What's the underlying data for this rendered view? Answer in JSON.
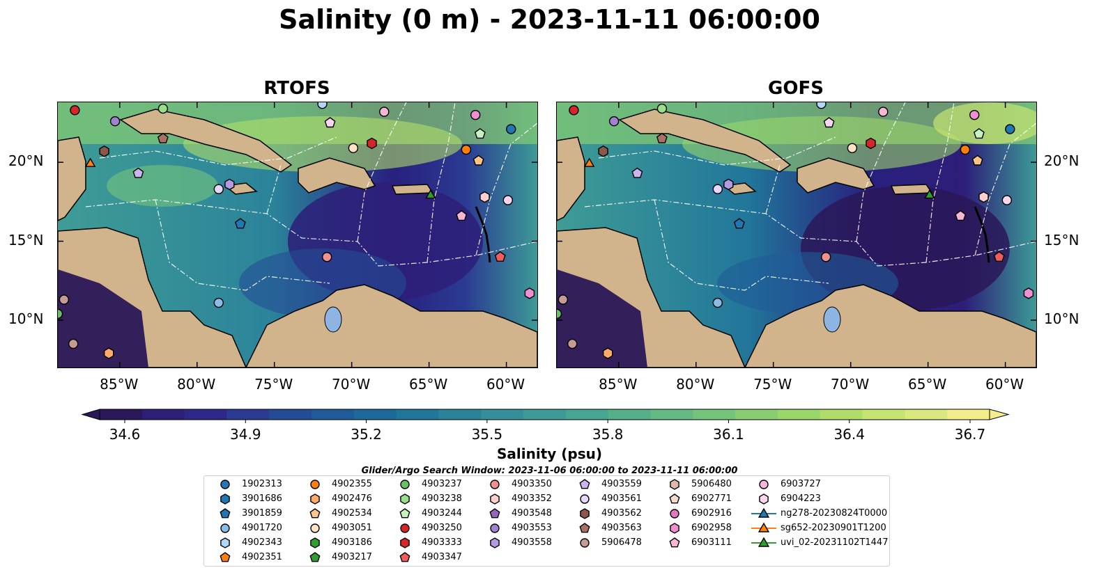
{
  "title": "Salinity (0 m) - 2023-11-11 06:00:00",
  "panels": [
    {
      "title": "RTOFS"
    },
    {
      "title": "GOFS"
    }
  ],
  "map": {
    "lon_range": [
      -89,
      -58
    ],
    "lat_range": [
      7,
      23.8
    ],
    "lon_ticks": [
      {
        "value": -85,
        "label": "85°W"
      },
      {
        "value": -80,
        "label": "80°W"
      },
      {
        "value": -75,
        "label": "75°W"
      },
      {
        "value": -70,
        "label": "70°W"
      },
      {
        "value": -65,
        "label": "65°W"
      },
      {
        "value": -60,
        "label": "60°W"
      }
    ],
    "lat_ticks": [
      {
        "value": 20,
        "label": "20°N"
      },
      {
        "value": 15,
        "label": "15°N"
      },
      {
        "value": 10,
        "label": "10°N"
      }
    ],
    "colors": {
      "land": "#d2b48c",
      "water_body": "#8db4e2",
      "coast": "#000000",
      "eez_lines": "#ffffff"
    }
  },
  "colorbar": {
    "label": "Salinity (psu)",
    "min": 34.6,
    "max": 36.7,
    "ticks": [
      "34.6",
      "34.9",
      "35.2",
      "35.5",
      "35.8",
      "36.1",
      "36.4",
      "36.7"
    ],
    "colors": [
      "#2a1858",
      "#2d1e78",
      "#2e2888",
      "#2b3b92",
      "#244c96",
      "#1f5b98",
      "#1d6999",
      "#21769a",
      "#2b839a",
      "#348f9a",
      "#3d9a97",
      "#48a592",
      "#55b08a",
      "#65ba83",
      "#75c47b",
      "#88cd70",
      "#9bd66a",
      "#b0dd69",
      "#c6e471",
      "#dbe880",
      "#f3ed8c"
    ]
  },
  "search_window": "Glider/Argo Search Window: 2023-11-06 06:00:00 to 2023-11-11 06:00:00",
  "legend": {
    "columns": [
      [
        {
          "label": "1902313",
          "color": "#1f77b4",
          "marker": "circle"
        },
        {
          "label": "3901686",
          "color": "#1f77b4",
          "marker": "hexagon"
        },
        {
          "label": "3901859",
          "color": "#1f77b4",
          "marker": "pentagon"
        },
        {
          "label": "4901720",
          "color": "#88bde6",
          "marker": "circle"
        },
        {
          "label": "4902343",
          "color": "#aed8f5",
          "marker": "hexagon"
        },
        {
          "label": "4902351",
          "color": "#ff7f0e",
          "marker": "pentagon"
        }
      ],
      [
        {
          "label": "4902355",
          "color": "#ff7f0e",
          "marker": "circle"
        },
        {
          "label": "4902476",
          "color": "#ffaa6a",
          "marker": "hexagon"
        },
        {
          "label": "4902534",
          "color": "#ffc48a",
          "marker": "pentagon"
        },
        {
          "label": "4903051",
          "color": "#ffe2c4",
          "marker": "circle"
        },
        {
          "label": "4903186",
          "color": "#2ca02c",
          "marker": "hexagon"
        },
        {
          "label": "4903217",
          "color": "#2ca02c",
          "marker": "pentagon"
        }
      ],
      [
        {
          "label": "4903237",
          "color": "#67c267",
          "marker": "circle"
        },
        {
          "label": "4903238",
          "color": "#98df8a",
          "marker": "hexagon"
        },
        {
          "label": "4903244",
          "color": "#c6f2c0",
          "marker": "pentagon"
        },
        {
          "label": "4903250",
          "color": "#d62728",
          "marker": "circle"
        },
        {
          "label": "4903333",
          "color": "#d62728",
          "marker": "hexagon"
        },
        {
          "label": "4903347",
          "color": "#f05b5c",
          "marker": "pentagon"
        }
      ],
      [
        {
          "label": "4903350",
          "color": "#f0908f",
          "marker": "circle"
        },
        {
          "label": "4903352",
          "color": "#ffcfcf",
          "marker": "hexagon"
        },
        {
          "label": "4903548",
          "color": "#9467bd",
          "marker": "pentagon"
        },
        {
          "label": "4903553",
          "color": "#a281d1",
          "marker": "circle"
        },
        {
          "label": "4903558",
          "color": "#b49be0",
          "marker": "hexagon"
        }
      ],
      [
        {
          "label": "4903559",
          "color": "#cbb5ee",
          "marker": "pentagon"
        },
        {
          "label": "4903561",
          "color": "#e6d7fb",
          "marker": "circle"
        },
        {
          "label": "4903562",
          "color": "#8c564b",
          "marker": "hexagon"
        },
        {
          "label": "4903563",
          "color": "#a87165",
          "marker": "pentagon"
        },
        {
          "label": "5906478",
          "color": "#c49c94",
          "marker": "circle"
        }
      ],
      [
        {
          "label": "5906480",
          "color": "#e0b8aa",
          "marker": "hexagon"
        },
        {
          "label": "6902771",
          "color": "#f5d9cc",
          "marker": "pentagon"
        },
        {
          "label": "6902916",
          "color": "#e377c2",
          "marker": "circle"
        },
        {
          "label": "6902958",
          "color": "#f08fd1",
          "marker": "hexagon"
        },
        {
          "label": "6903111",
          "color": "#f7b6d2",
          "marker": "pentagon"
        }
      ],
      [
        {
          "label": "6903727",
          "color": "#f9b4e0",
          "marker": "circle"
        },
        {
          "label": "6904223",
          "color": "#fcd5ee",
          "marker": "hexagon"
        },
        {
          "label": "ng278-20230824T0000",
          "color": "#1f77b4",
          "marker": "triangle-line"
        },
        {
          "label": "sg652-20230901T1200",
          "color": "#ff7f0e",
          "marker": "triangle-line"
        },
        {
          "label": "uvi_02-20231102T1447",
          "color": "#2ca02c",
          "marker": "triangle-line"
        }
      ]
    ]
  },
  "observations": [
    {
      "lon": -87.9,
      "lat": 23.3,
      "marker": "circle",
      "color": "#d62728"
    },
    {
      "lon": -85.3,
      "lat": 22.6,
      "marker": "circle",
      "color": "#a281d1"
    },
    {
      "lon": -82.2,
      "lat": 23.4,
      "marker": "circle",
      "color": "#98df8a"
    },
    {
      "lon": -82.2,
      "lat": 21.5,
      "marker": "pentagon",
      "color": "#a87165"
    },
    {
      "lon": -86.0,
      "lat": 20.7,
      "marker": "hexagon",
      "color": "#8c564b"
    },
    {
      "lon": -86.9,
      "lat": 19.9,
      "marker": "triangle",
      "color": "#ff7f0e"
    },
    {
      "lon": -83.8,
      "lat": 19.3,
      "marker": "pentagon",
      "color": "#cbb5ee"
    },
    {
      "lon": -71.9,
      "lat": 23.7,
      "marker": "circle",
      "color": "#aed8f5"
    },
    {
      "lon": -71.4,
      "lat": 22.5,
      "marker": "pentagon",
      "color": "#fcd5ee"
    },
    {
      "lon": -67.9,
      "lat": 23.2,
      "marker": "circle",
      "color": "#f7b6d2"
    },
    {
      "lon": -69.9,
      "lat": 20.9,
      "marker": "circle",
      "color": "#ffe2c4"
    },
    {
      "lon": -68.7,
      "lat": 21.2,
      "marker": "hexagon",
      "color": "#d62728"
    },
    {
      "lon": -62.0,
      "lat": 23.0,
      "marker": "circle",
      "color": "#f08fd1"
    },
    {
      "lon": -59.7,
      "lat": 22.1,
      "marker": "circle",
      "color": "#1f77b4"
    },
    {
      "lon": -61.7,
      "lat": 21.8,
      "marker": "pentagon",
      "color": "#c6f2c0"
    },
    {
      "lon": -62.6,
      "lat": 20.8,
      "marker": "circle",
      "color": "#ff7f0e"
    },
    {
      "lon": -61.8,
      "lat": 20.1,
      "marker": "pentagon",
      "color": "#ffc48a"
    },
    {
      "lon": -78.6,
      "lat": 18.3,
      "marker": "circle",
      "color": "#e6d7fb"
    },
    {
      "lon": -77.9,
      "lat": 18.6,
      "marker": "hexagon",
      "color": "#b49be0"
    },
    {
      "lon": -77.2,
      "lat": 16.1,
      "marker": "pentagon",
      "color": "#1f77b4"
    },
    {
      "lon": -64.9,
      "lat": 17.9,
      "marker": "triangle",
      "color": "#2ca02c"
    },
    {
      "lon": -61.4,
      "lat": 17.8,
      "marker": "hexagon",
      "color": "#ffcfcf"
    },
    {
      "lon": -59.9,
      "lat": 17.6,
      "marker": "circle",
      "color": "#fcd5ee"
    },
    {
      "lon": -62.9,
      "lat": 16.6,
      "marker": "pentagon",
      "color": "#f7b6d2"
    },
    {
      "lon": -71.6,
      "lat": 14.0,
      "marker": "circle",
      "color": "#f0908f"
    },
    {
      "lon": -60.4,
      "lat": 14.0,
      "marker": "pentagon",
      "color": "#f05b5c"
    },
    {
      "lon": -58.5,
      "lat": 11.7,
      "marker": "hexagon",
      "color": "#f08fd1"
    },
    {
      "lon": -78.6,
      "lat": 11.1,
      "marker": "circle",
      "color": "#88bde6"
    },
    {
      "lon": -88.6,
      "lat": 11.3,
      "marker": "circle",
      "color": "#c49c94"
    },
    {
      "lon": -89.0,
      "lat": 10.4,
      "marker": "circle",
      "color": "#67c267"
    },
    {
      "lon": -88.0,
      "lat": 8.5,
      "marker": "circle",
      "color": "#c49c94"
    },
    {
      "lon": -85.7,
      "lat": 7.9,
      "marker": "hexagon",
      "color": "#ffaa6a"
    }
  ]
}
